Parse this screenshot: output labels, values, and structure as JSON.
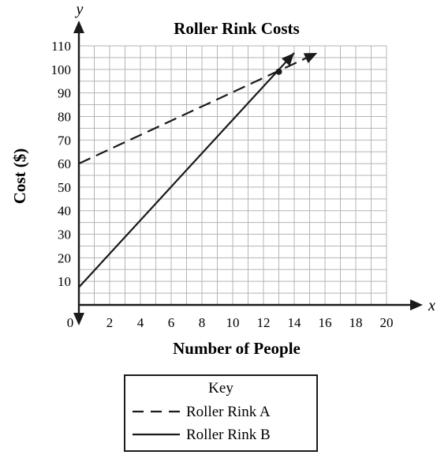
{
  "chart_data": {
    "type": "line",
    "title": "Roller Rink Costs",
    "xlabel": "Number of People",
    "ylabel": "Cost ($)",
    "x_axis_letter": "x",
    "y_axis_letter": "y",
    "xlim": [
      0,
      20
    ],
    "ylim": [
      0,
      110
    ],
    "x_ticks": [
      2,
      4,
      6,
      8,
      10,
      12,
      14,
      16,
      18,
      20
    ],
    "y_ticks": [
      10,
      20,
      30,
      40,
      50,
      60,
      70,
      80,
      90,
      100,
      110
    ],
    "origin_label": "0",
    "grid": true,
    "series": [
      {
        "name": "Roller Rink A",
        "style": "dashed",
        "x": [
          0,
          15.5
        ],
        "y": [
          60,
          107
        ]
      },
      {
        "name": "Roller Rink B",
        "style": "solid",
        "x": [
          0,
          14
        ],
        "y": [
          7.5,
          107
        ]
      }
    ],
    "intersection": {
      "x": 13,
      "y": 99
    },
    "legend": {
      "title": "Key",
      "position": "bottom-center",
      "entries": [
        "Roller Rink A",
        "Roller Rink B"
      ]
    }
  }
}
